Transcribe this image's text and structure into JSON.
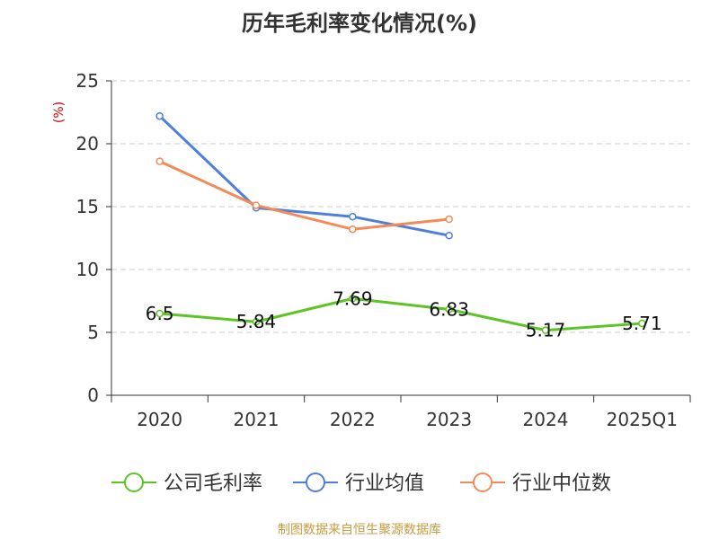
{
  "chart_data": {
    "type": "line",
    "title": "历年毛利率变化情况(%)",
    "ylabel": "(%)",
    "xlabel": "",
    "ylim": [
      0,
      25
    ],
    "yticks": [
      0,
      5,
      10,
      15,
      20,
      25
    ],
    "grid": true,
    "legend_position": "bottom",
    "categories": [
      "2020",
      "2021",
      "2022",
      "2023",
      "2024",
      "2025Q1"
    ],
    "series": [
      {
        "name": "公司毛利率",
        "color": "#5dc426",
        "values": [
          6.5,
          5.84,
          7.69,
          6.83,
          5.17,
          5.71
        ],
        "labels": [
          "6.5",
          "5.84",
          "7.69",
          "6.83",
          "5.17",
          "5.71"
        ],
        "show_labels": true
      },
      {
        "name": "行业均值",
        "color": "#4e7fdc",
        "values": [
          22.2,
          14.9,
          14.2,
          12.7,
          null,
          null
        ],
        "show_labels": false
      },
      {
        "name": "行业中位数",
        "color": "#f28b55",
        "values": [
          18.6,
          15.1,
          13.2,
          14.0,
          null,
          null
        ],
        "show_labels": false
      }
    ]
  },
  "colors": {
    "title": "#333333",
    "ylabel": "#cc0000",
    "grid": "#cccccc",
    "axis": "#333333",
    "source": "#c89b3c"
  },
  "source": "制图数据来自恒生聚源数据库"
}
